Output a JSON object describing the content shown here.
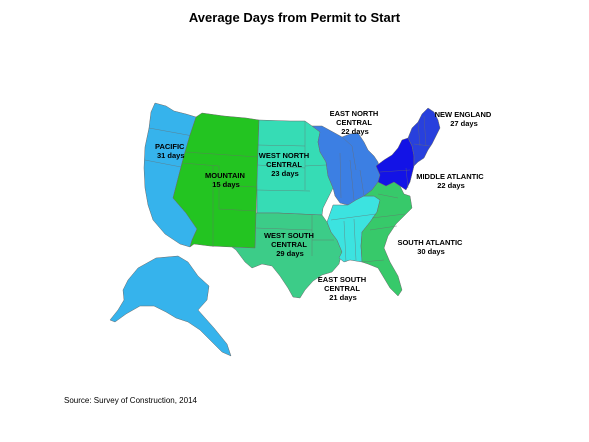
{
  "title": "Average Days from Permit to Start",
  "source": "Source: Survey of Construction, 2014",
  "colors": {
    "pacific": "#36b3ec",
    "mountain": "#23c421",
    "west_north_central": "#36dcb5",
    "west_south_central": "#3ccc88",
    "east_north_central": "#3c7fe3",
    "east_south_central": "#3ce3e0",
    "south_atlantic": "#37c96a",
    "middle_atlantic": "#1313e6",
    "new_england": "#2840dd"
  },
  "regions": [
    {
      "key": "pacific",
      "name_lines": [
        "PACIFIC"
      ],
      "days": 31,
      "days_label": "31 days"
    },
    {
      "key": "mountain",
      "name_lines": [
        "MOUNTAIN"
      ],
      "days": 15,
      "days_label": "15 days"
    },
    {
      "key": "west_north_central",
      "name_lines": [
        "WEST NORTH",
        "CENTRAL"
      ],
      "days": 23,
      "days_label": "23 days"
    },
    {
      "key": "west_south_central",
      "name_lines": [
        "WEST SOUTH",
        "CENTRAL"
      ],
      "days": 29,
      "days_label": "29 days"
    },
    {
      "key": "east_north_central",
      "name_lines": [
        "EAST NORTH",
        "CENTRAL"
      ],
      "days": 22,
      "days_label": "22 days"
    },
    {
      "key": "east_south_central",
      "name_lines": [
        "EAST SOUTH",
        "CENTRAL"
      ],
      "days": 21,
      "days_label": "21 days"
    },
    {
      "key": "south_atlantic",
      "name_lines": [
        "SOUTH ATLANTIC"
      ],
      "days": 30,
      "days_label": "30 days"
    },
    {
      "key": "middle_atlantic",
      "name_lines": [
        "MIDDLE ATLANTIC"
      ],
      "days": 22,
      "days_label": "22 days"
    },
    {
      "key": "new_england",
      "name_lines": [
        "NEW ENGLAND"
      ],
      "days": 27,
      "days_label": "27 days"
    }
  ]
}
